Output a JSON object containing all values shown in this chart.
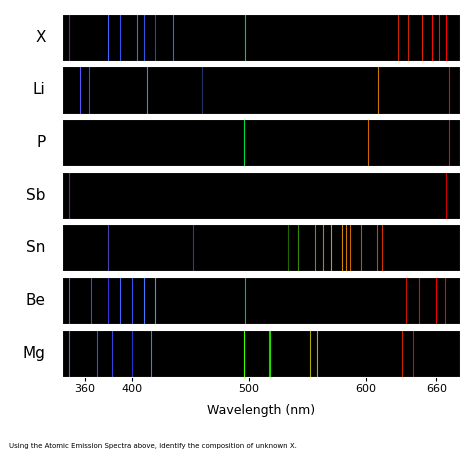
{
  "xlabel": "Wavelength (nm)",
  "caption": "Using the Atomic Emission Spectra above, identify the composition of unknown X.",
  "x_min": 340,
  "x_max": 680,
  "elements": [
    "X",
    "Li",
    "P",
    "Sb",
    "Sn",
    "Be",
    "Mg"
  ],
  "xticks": [
    360,
    400,
    500,
    600,
    660
  ],
  "spectra": {
    "X": [
      {
        "wl": 346,
        "color": "#9400D3"
      },
      {
        "wl": 380,
        "color": "#4466ff"
      },
      {
        "wl": 390,
        "color": "#3355ee"
      },
      {
        "wl": 404,
        "color": "#4466ff"
      },
      {
        "wl": 410,
        "color": "#3355dd"
      },
      {
        "wl": 420,
        "color": "#2244cc"
      },
      {
        "wl": 435,
        "color": "#3366ff"
      },
      {
        "wl": 497,
        "color": "#00cc44"
      },
      {
        "wl": 627,
        "color": "#cc2200"
      },
      {
        "wl": 636,
        "color": "#cc2200"
      },
      {
        "wl": 648,
        "color": "#dd2200"
      },
      {
        "wl": 656,
        "color": "#ee1100"
      },
      {
        "wl": 662,
        "color": "#ee1100"
      },
      {
        "wl": 668,
        "color": "#ff0000"
      }
    ],
    "Li": [
      {
        "wl": 356,
        "color": "#5555ff"
      },
      {
        "wl": 363,
        "color": "#4444ee"
      },
      {
        "wl": 413,
        "color": "#5577ff"
      },
      {
        "wl": 460,
        "color": "#223366"
      },
      {
        "wl": 610,
        "color": "#cc7700"
      },
      {
        "wl": 671,
        "color": "#ff0000"
      }
    ],
    "P": [
      {
        "wl": 496,
        "color": "#00dd44"
      },
      {
        "wl": 602,
        "color": "#cc6600"
      },
      {
        "wl": 671,
        "color": "#ff0000"
      }
    ],
    "Sb": [
      {
        "wl": 346,
        "color": "#9400D3"
      },
      {
        "wl": 668,
        "color": "#cc0000"
      }
    ],
    "Sn": [
      {
        "wl": 380,
        "color": "#4444aa"
      },
      {
        "wl": 452,
        "color": "#224488"
      },
      {
        "wl": 533,
        "color": "#226600"
      },
      {
        "wl": 542,
        "color": "#338800"
      },
      {
        "wl": 556,
        "color": "#888800"
      },
      {
        "wl": 563,
        "color": "#aa8800"
      },
      {
        "wl": 570,
        "color": "#cc9900"
      },
      {
        "wl": 579,
        "color": "#cc8800"
      },
      {
        "wl": 583,
        "color": "#cc7700"
      },
      {
        "wl": 586,
        "color": "#cc6600"
      },
      {
        "wl": 596,
        "color": "#bb5500"
      },
      {
        "wl": 609,
        "color": "#cc4400"
      },
      {
        "wl": 614,
        "color": "#cc3300"
      }
    ],
    "Be": [
      {
        "wl": 346,
        "color": "#5555ff"
      },
      {
        "wl": 365,
        "color": "#4444ee"
      },
      {
        "wl": 380,
        "color": "#3333dd"
      },
      {
        "wl": 390,
        "color": "#4466ff"
      },
      {
        "wl": 400,
        "color": "#3355ee"
      },
      {
        "wl": 410,
        "color": "#4477ff"
      },
      {
        "wl": 420,
        "color": "#5588ff"
      },
      {
        "wl": 497,
        "color": "#00bb55"
      },
      {
        "wl": 634,
        "color": "#cc1100"
      },
      {
        "wl": 645,
        "color": "#dd1100"
      },
      {
        "wl": 660,
        "color": "#ee0000"
      },
      {
        "wl": 667,
        "color": "#ff0000"
      }
    ],
    "Mg": [
      {
        "wl": 346,
        "color": "#4466ff"
      },
      {
        "wl": 370,
        "color": "#3355ee"
      },
      {
        "wl": 383,
        "color": "#3344dd"
      },
      {
        "wl": 400,
        "color": "#2233cc"
      },
      {
        "wl": 416,
        "color": "#4477ff"
      },
      {
        "wl": 496,
        "color": "#44ff00"
      },
      {
        "wl": 517,
        "color": "#22cc00"
      },
      {
        "wl": 518,
        "color": "#22dd00"
      },
      {
        "wl": 552,
        "color": "#aaaa00"
      },
      {
        "wl": 558,
        "color": "#bbaa00"
      },
      {
        "wl": 631,
        "color": "#cc2200"
      },
      {
        "wl": 640,
        "color": "#cc1100"
      }
    ]
  }
}
